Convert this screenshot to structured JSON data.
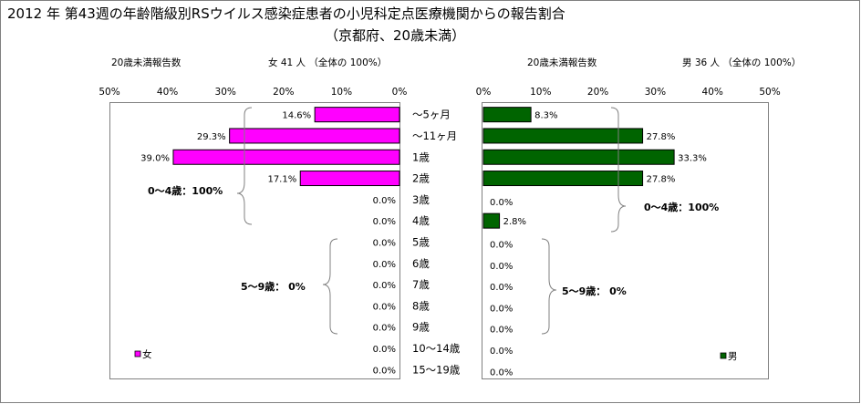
{
  "title": "2012 年 第43週の年齢階級別RSウイルス感染症患者の小児科定点医療機関からの報告割合",
  "subtitle": "（京都府、20歳未満）",
  "colors": {
    "female": "#ff00ff",
    "male": "#006400",
    "frame": "#808080",
    "brace": "#808080"
  },
  "chart_data": [
    {
      "type": "bar",
      "orientation": "horizontal",
      "direction": "right-to-left",
      "header_label": "20歳未満報告数",
      "header_count": "女  41 人  （全体の   100%）",
      "xlim": [
        0,
        50
      ],
      "ticks": [
        "50%",
        "40%",
        "30%",
        "20%",
        "10%",
        "0%"
      ],
      "tick_values": [
        50,
        40,
        30,
        20,
        10,
        0
      ],
      "categories": [
        "～5ヶ月",
        "～11ヶ月",
        "1歳",
        "2歳",
        "3歳",
        "4歳",
        "5歳",
        "6歳",
        "7歳",
        "8歳",
        "9歳",
        "10～14歳",
        "15～19歳"
      ],
      "values": [
        14.6,
        29.3,
        39.0,
        17.1,
        0.0,
        0.0,
        0.0,
        0.0,
        0.0,
        0.0,
        0.0,
        0.0,
        0.0
      ],
      "value_labels": [
        "14.6%",
        "29.3%",
        "39.0%",
        "17.1%",
        "0.0%",
        "0.0%",
        "0.0%",
        "0.0%",
        "0.0%",
        "0.0%",
        "0.0%",
        "0.0%",
        "0.0%"
      ],
      "legend": "女",
      "legend_position": "bottom-left",
      "annotations": [
        "0～4歳：100%",
        "5～9歳：  0%"
      ]
    },
    {
      "type": "bar",
      "orientation": "horizontal",
      "direction": "left-to-right",
      "header_label": "20歳未満報告数",
      "header_count": "男   36 人  （全体の    100%）",
      "xlim": [
        0,
        50
      ],
      "ticks": [
        "0%",
        "10%",
        "20%",
        "30%",
        "40%",
        "50%"
      ],
      "tick_values": [
        0,
        10,
        20,
        30,
        40,
        50
      ],
      "categories": [
        "～5ヶ月",
        "～11ヶ月",
        "1歳",
        "2歳",
        "3歳",
        "4歳",
        "5歳",
        "6歳",
        "7歳",
        "8歳",
        "9歳",
        "10～14歳",
        "15～19歳"
      ],
      "values": [
        8.3,
        27.8,
        33.3,
        27.8,
        0.0,
        2.8,
        0.0,
        0.0,
        0.0,
        0.0,
        0.0,
        0.0,
        0.0
      ],
      "value_labels": [
        "8.3%",
        "27.8%",
        "33.3%",
        "27.8%",
        "0.0%",
        "2.8%",
        "0.0%",
        "0.0%",
        "0.0%",
        "0.0%",
        "0.0%",
        "0.0%",
        "0.0%"
      ],
      "legend": "男",
      "legend_position": "bottom-right",
      "annotations": [
        "0～4歳：100%",
        "5～9歳：  0%"
      ]
    }
  ]
}
